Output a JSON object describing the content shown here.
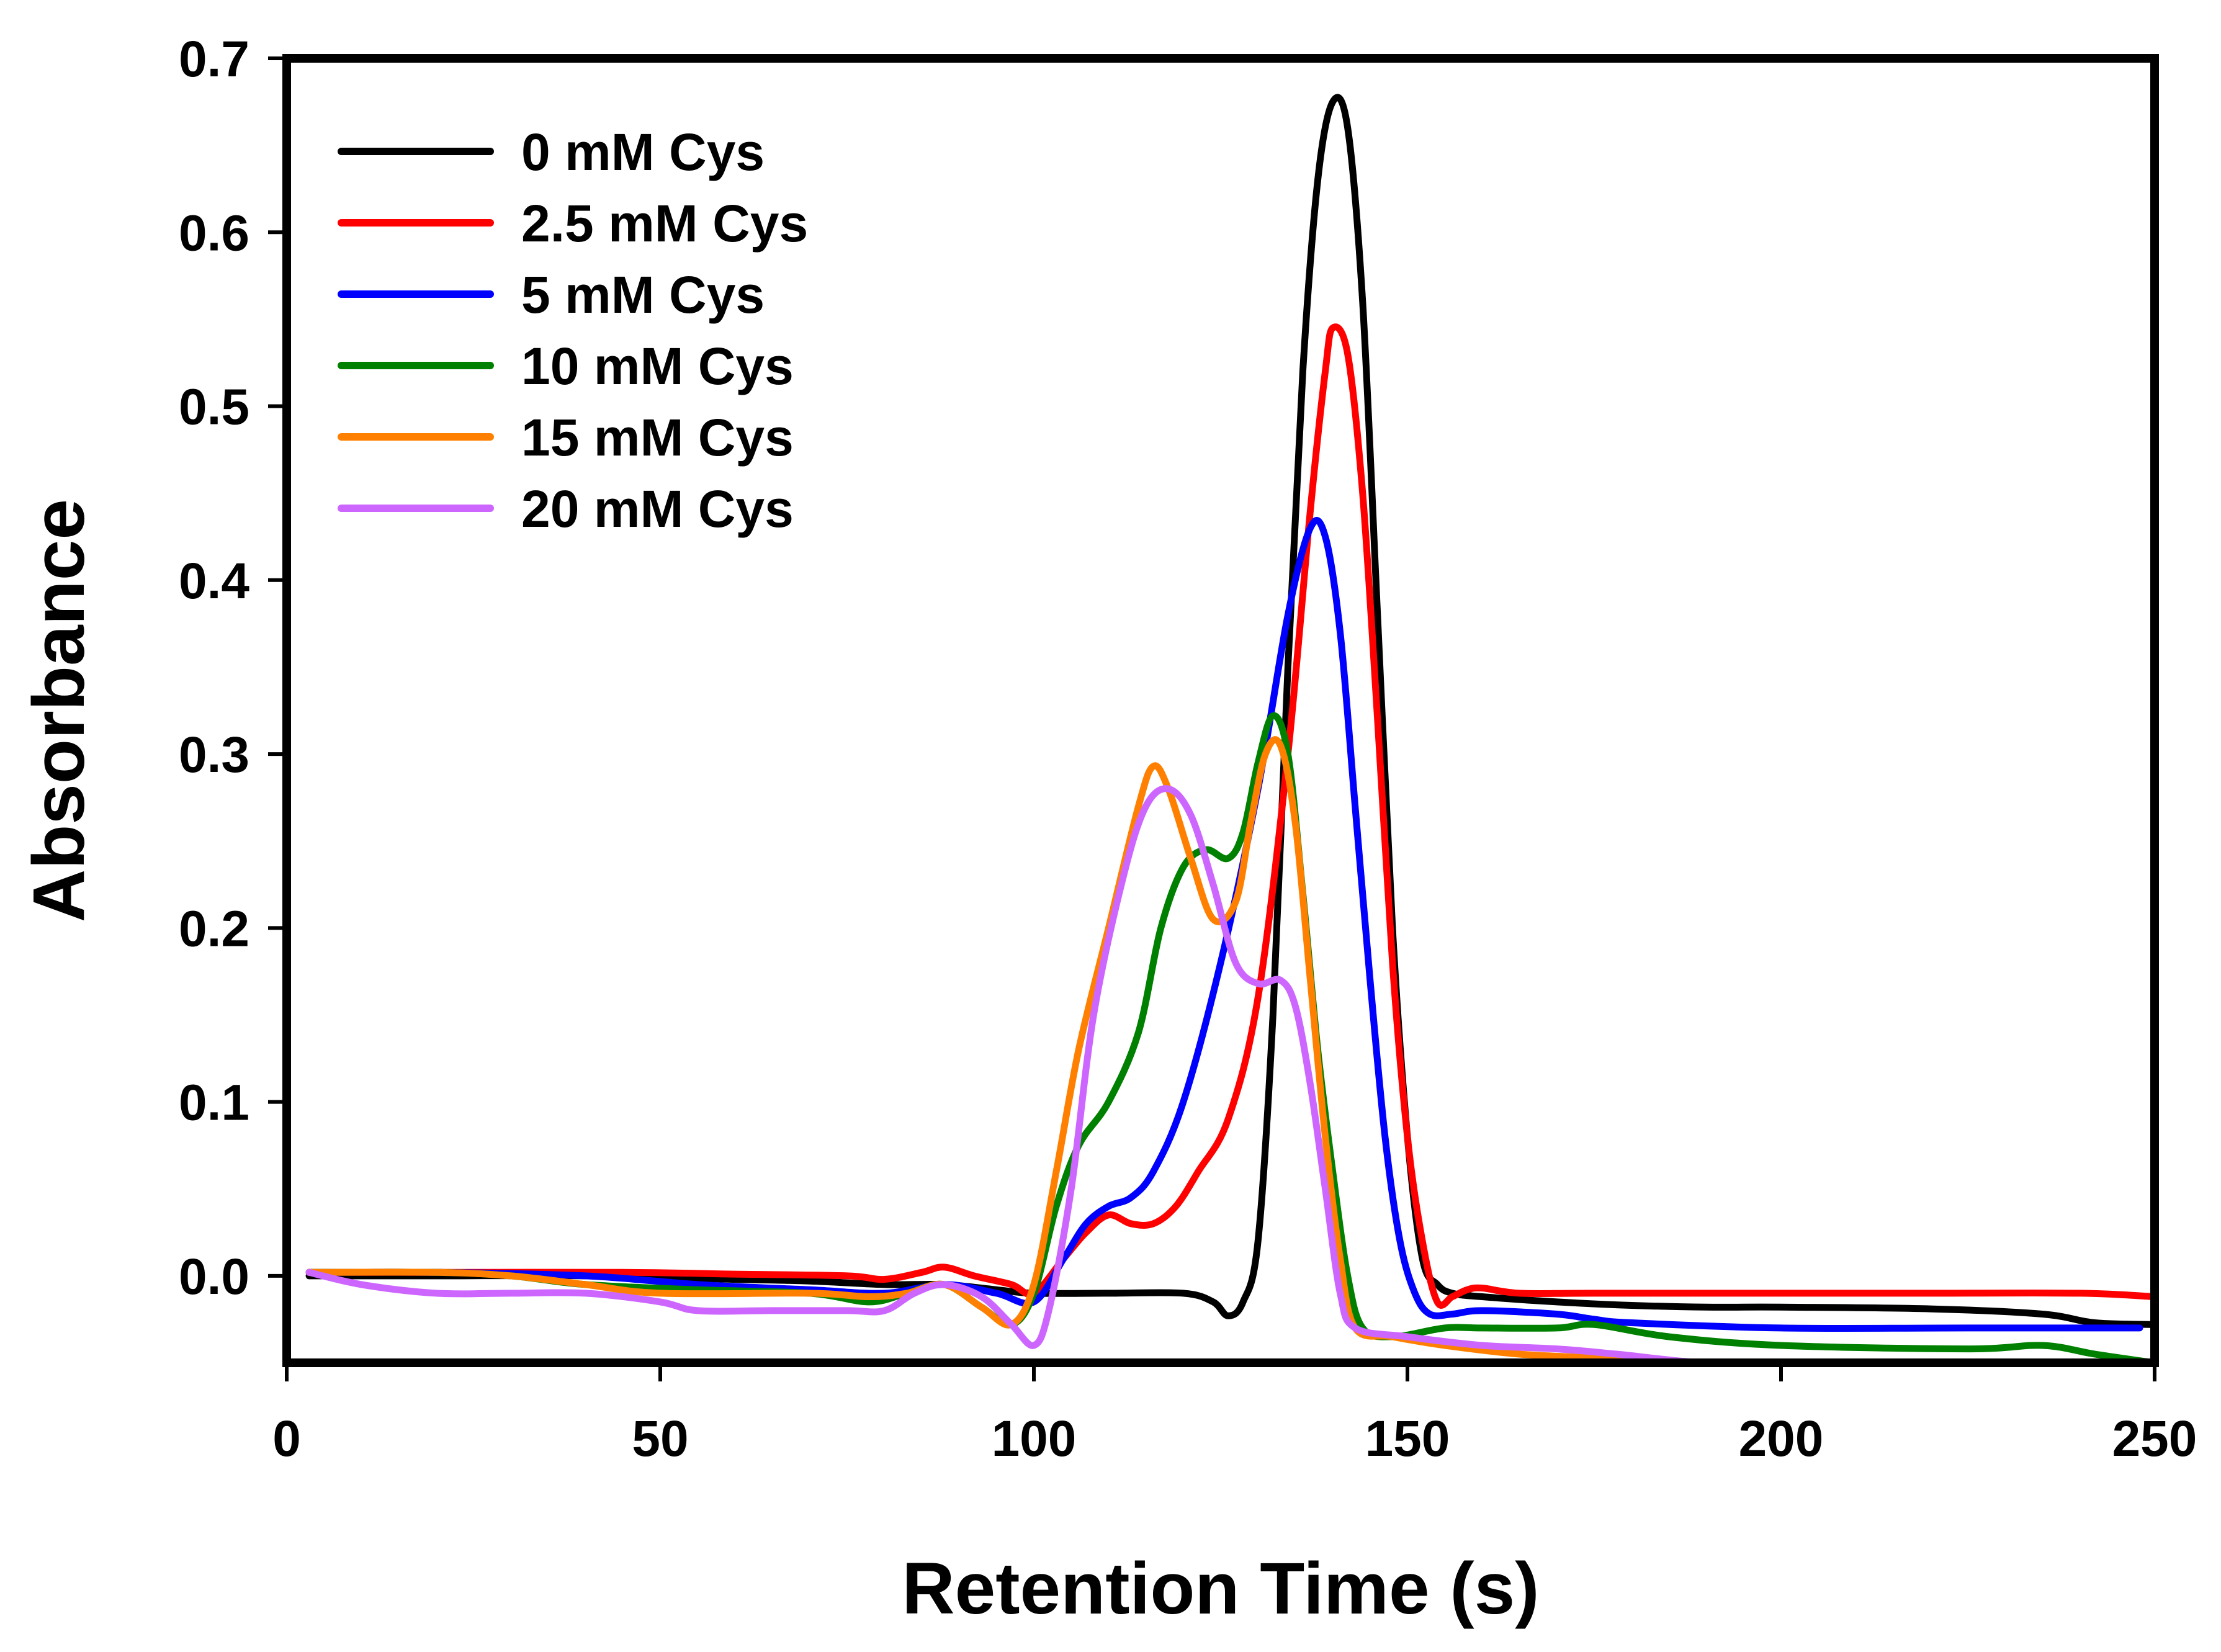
{
  "chart_data": {
    "type": "line",
    "title": "",
    "xlabel": "Retention Time (s)",
    "ylabel": "Absorbance",
    "xlim": [
      0,
      250
    ],
    "ylim": [
      -0.05,
      0.7
    ],
    "grid": false,
    "legend_position": "top-left",
    "x_ticks": [
      {
        "value": 0,
        "label": "0"
      },
      {
        "value": 50,
        "label": "50"
      },
      {
        "value": 100,
        "label": "100"
      },
      {
        "value": 150,
        "label": "150"
      },
      {
        "value": 200,
        "label": "200"
      },
      {
        "value": 250,
        "label": "250"
      }
    ],
    "y_ticks": [
      {
        "value": 0.0,
        "label": "0.0"
      },
      {
        "value": 0.1,
        "label": "0.1"
      },
      {
        "value": 0.2,
        "label": "0.2"
      },
      {
        "value": 0.3,
        "label": "0.3"
      },
      {
        "value": 0.4,
        "label": "0.4"
      },
      {
        "value": 0.5,
        "label": "0.5"
      },
      {
        "value": 0.6,
        "label": "0.6"
      },
      {
        "value": 0.7,
        "label": "0.7"
      }
    ],
    "series": [
      {
        "name": "0 mM Cys",
        "color": "#000000",
        "points": [
          [
            3,
            0.0
          ],
          [
            20,
            0.0
          ],
          [
            40,
            0.0
          ],
          [
            60,
            -0.002
          ],
          [
            70,
            -0.003
          ],
          [
            80,
            -0.005
          ],
          [
            88,
            -0.005
          ],
          [
            95,
            -0.008
          ],
          [
            100,
            -0.01
          ],
          [
            110,
            -0.01
          ],
          [
            120,
            -0.01
          ],
          [
            124,
            -0.015
          ],
          [
            126,
            -0.023
          ],
          [
            128,
            -0.015
          ],
          [
            130,
            0.02
          ],
          [
            132,
            0.15
          ],
          [
            134,
            0.35
          ],
          [
            136,
            0.52
          ],
          [
            138,
            0.63
          ],
          [
            140,
            0.675
          ],
          [
            142,
            0.66
          ],
          [
            144,
            0.56
          ],
          [
            146,
            0.38
          ],
          [
            148,
            0.2
          ],
          [
            150,
            0.08
          ],
          [
            152,
            0.01
          ],
          [
            154,
            -0.005
          ],
          [
            156,
            -0.01
          ],
          [
            160,
            -0.012
          ],
          [
            170,
            -0.015
          ],
          [
            180,
            -0.017
          ],
          [
            190,
            -0.018
          ],
          [
            200,
            -0.018
          ],
          [
            220,
            -0.019
          ],
          [
            235,
            -0.022
          ],
          [
            242,
            -0.027
          ],
          [
            250,
            -0.028
          ]
        ]
      },
      {
        "name": "2.5 mM Cys",
        "color": "#ff0000",
        "points": [
          [
            3,
            0.002
          ],
          [
            20,
            0.002
          ],
          [
            45,
            0.002
          ],
          [
            60,
            0.001
          ],
          [
            75,
            0.0
          ],
          [
            80,
            -0.002
          ],
          [
            85,
            0.002
          ],
          [
            88,
            0.005
          ],
          [
            92,
            0.0
          ],
          [
            97,
            -0.005
          ],
          [
            100,
            -0.01
          ],
          [
            104,
            0.01
          ],
          [
            107,
            0.025
          ],
          [
            110,
            0.035
          ],
          [
            113,
            0.03
          ],
          [
            116,
            0.03
          ],
          [
            119,
            0.04
          ],
          [
            122,
            0.06
          ],
          [
            126,
            0.09
          ],
          [
            130,
            0.16
          ],
          [
            134,
            0.3
          ],
          [
            137,
            0.44
          ],
          [
            139,
            0.52
          ],
          [
            140,
            0.545
          ],
          [
            142,
            0.53
          ],
          [
            144,
            0.45
          ],
          [
            146,
            0.32
          ],
          [
            148,
            0.18
          ],
          [
            150,
            0.08
          ],
          [
            152,
            0.02
          ],
          [
            154,
            -0.015
          ],
          [
            156,
            -0.012
          ],
          [
            158,
            -0.008
          ],
          [
            160,
            -0.007
          ],
          [
            165,
            -0.01
          ],
          [
            175,
            -0.01
          ],
          [
            200,
            -0.01
          ],
          [
            220,
            -0.01
          ],
          [
            240,
            -0.01
          ],
          [
            250,
            -0.012
          ]
        ]
      },
      {
        "name": "5 mM Cys",
        "color": "#0000ff",
        "points": [
          [
            3,
            0.002
          ],
          [
            20,
            0.002
          ],
          [
            40,
            0.0
          ],
          [
            55,
            -0.005
          ],
          [
            70,
            -0.008
          ],
          [
            80,
            -0.01
          ],
          [
            88,
            -0.005
          ],
          [
            95,
            -0.01
          ],
          [
            100,
            -0.015
          ],
          [
            104,
            0.01
          ],
          [
            107,
            0.03
          ],
          [
            110,
            0.04
          ],
          [
            113,
            0.045
          ],
          [
            116,
            0.06
          ],
          [
            120,
            0.1
          ],
          [
            125,
            0.18
          ],
          [
            130,
            0.28
          ],
          [
            134,
            0.38
          ],
          [
            137,
            0.43
          ],
          [
            139,
            0.425
          ],
          [
            141,
            0.37
          ],
          [
            143,
            0.27
          ],
          [
            145,
            0.17
          ],
          [
            147,
            0.08
          ],
          [
            149,
            0.02
          ],
          [
            151,
            -0.01
          ],
          [
            153,
            -0.022
          ],
          [
            156,
            -0.022
          ],
          [
            160,
            -0.02
          ],
          [
            170,
            -0.022
          ],
          [
            175,
            -0.025
          ],
          [
            180,
            -0.027
          ],
          [
            200,
            -0.03
          ],
          [
            225,
            -0.03
          ],
          [
            248,
            -0.03
          ]
        ]
      },
      {
        "name": "10 mM Cys",
        "color": "#008000",
        "points": [
          [
            3,
            0.002
          ],
          [
            20,
            0.002
          ],
          [
            30,
            0.0
          ],
          [
            40,
            -0.005
          ],
          [
            55,
            -0.008
          ],
          [
            70,
            -0.01
          ],
          [
            78,
            -0.015
          ],
          [
            83,
            -0.01
          ],
          [
            88,
            -0.005
          ],
          [
            93,
            -0.018
          ],
          [
            97,
            -0.028
          ],
          [
            100,
            -0.01
          ],
          [
            103,
            0.04
          ],
          [
            106,
            0.075
          ],
          [
            110,
            0.1
          ],
          [
            114,
            0.14
          ],
          [
            117,
            0.2
          ],
          [
            120,
            0.235
          ],
          [
            123,
            0.245
          ],
          [
            126,
            0.24
          ],
          [
            128,
            0.255
          ],
          [
            130,
            0.295
          ],
          [
            132,
            0.322
          ],
          [
            134,
            0.3
          ],
          [
            136,
            0.22
          ],
          [
            138,
            0.13
          ],
          [
            140,
            0.06
          ],
          [
            142,
            0.0
          ],
          [
            144,
            -0.03
          ],
          [
            148,
            -0.035
          ],
          [
            155,
            -0.03
          ],
          [
            160,
            -0.03
          ],
          [
            170,
            -0.03
          ],
          [
            175,
            -0.028
          ],
          [
            185,
            -0.035
          ],
          [
            200,
            -0.04
          ],
          [
            225,
            -0.042
          ],
          [
            235,
            -0.04
          ],
          [
            242,
            -0.045
          ],
          [
            250,
            -0.05
          ]
        ]
      },
      {
        "name": "15 mM Cys",
        "color": "#ff8000",
        "points": [
          [
            3,
            0.002
          ],
          [
            20,
            0.002
          ],
          [
            30,
            0.0
          ],
          [
            40,
            -0.005
          ],
          [
            50,
            -0.01
          ],
          [
            70,
            -0.01
          ],
          [
            78,
            -0.012
          ],
          [
            83,
            -0.01
          ],
          [
            88,
            -0.005
          ],
          [
            93,
            -0.018
          ],
          [
            97,
            -0.028
          ],
          [
            100,
            -0.005
          ],
          [
            103,
            0.06
          ],
          [
            106,
            0.13
          ],
          [
            110,
            0.2
          ],
          [
            114,
            0.27
          ],
          [
            116,
            0.293
          ],
          [
            118,
            0.28
          ],
          [
            121,
            0.24
          ],
          [
            124,
            0.205
          ],
          [
            127,
            0.215
          ],
          [
            129,
            0.26
          ],
          [
            131,
            0.3
          ],
          [
            133,
            0.305
          ],
          [
            135,
            0.26
          ],
          [
            137,
            0.17
          ],
          [
            139,
            0.08
          ],
          [
            141,
            0.01
          ],
          [
            143,
            -0.03
          ],
          [
            148,
            -0.035
          ],
          [
            155,
            -0.04
          ],
          [
            165,
            -0.045
          ],
          [
            178,
            -0.048
          ],
          [
            185,
            -0.052
          ],
          [
            192,
            -0.055
          ]
        ]
      },
      {
        "name": "20 mM Cys",
        "color": "#cc66ff",
        "points": [
          [
            3,
            0.002
          ],
          [
            10,
            -0.005
          ],
          [
            20,
            -0.01
          ],
          [
            30,
            -0.01
          ],
          [
            40,
            -0.01
          ],
          [
            50,
            -0.015
          ],
          [
            55,
            -0.02
          ],
          [
            65,
            -0.02
          ],
          [
            75,
            -0.02
          ],
          [
            80,
            -0.02
          ],
          [
            84,
            -0.01
          ],
          [
            88,
            -0.005
          ],
          [
            93,
            -0.012
          ],
          [
            97,
            -0.028
          ],
          [
            100,
            -0.04
          ],
          [
            102,
            -0.02
          ],
          [
            105,
            0.05
          ],
          [
            108,
            0.15
          ],
          [
            112,
            0.23
          ],
          [
            115,
            0.27
          ],
          [
            118,
            0.28
          ],
          [
            121,
            0.265
          ],
          [
            124,
            0.225
          ],
          [
            127,
            0.18
          ],
          [
            130,
            0.168
          ],
          [
            133,
            0.17
          ],
          [
            135,
            0.155
          ],
          [
            137,
            0.11
          ],
          [
            139,
            0.05
          ],
          [
            141,
            -0.01
          ],
          [
            143,
            -0.03
          ],
          [
            150,
            -0.035
          ],
          [
            160,
            -0.04
          ],
          [
            170,
            -0.042
          ],
          [
            178,
            -0.045
          ],
          [
            190,
            -0.05
          ],
          [
            205,
            -0.05
          ],
          [
            220,
            -0.05
          ],
          [
            228,
            -0.05
          ]
        ]
      }
    ]
  }
}
